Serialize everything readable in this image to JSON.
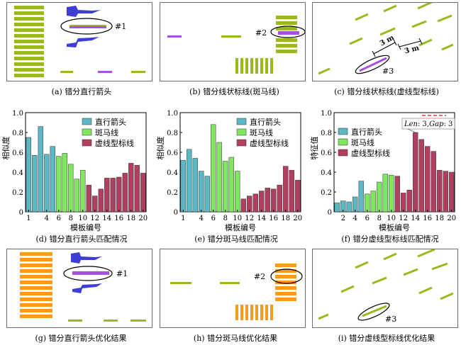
{
  "colors": {
    "green": "#9ab91d",
    "purple": "#a64fe0",
    "blue_dark": "#3e3fd2",
    "orange": "#f79a22",
    "arrow_bar": "#5bb8c4",
    "zebra_bar": "#80e660",
    "dashed_bar": "#b0405e",
    "red_dash": "#e0302b"
  },
  "panels": [
    {
      "id": "a",
      "caption": "(a) 错分直行箭头",
      "marker": "#1"
    },
    {
      "id": "b",
      "caption": "(b) 错分线状标线(斑马线)",
      "marker": "#2"
    },
    {
      "id": "c",
      "caption": "(c) 错分线状标线(虚线型标线)",
      "marker": "#3",
      "dim1": "3 m",
      "dim2": "3 m"
    },
    {
      "id": "g",
      "caption": "(g) 错分直行箭头优化结果",
      "marker": "#1"
    },
    {
      "id": "h",
      "caption": "(h) 错分斑马线优化结果",
      "marker": "#2"
    },
    {
      "id": "i",
      "caption": "(i) 错分虚线型标线优化结果",
      "marker": "#3"
    }
  ],
  "chart_data": [
    {
      "id": "d",
      "type": "bar",
      "caption": "(d) 错分直行箭头匹配情况",
      "xlabel": "模板编号",
      "ylabel": "相似度",
      "ylim": [
        0,
        1.0
      ],
      "yticks": [
        "0",
        "0.2",
        "0.4",
        "0.6",
        "0.8",
        "1.0"
      ],
      "xticks": [
        "1",
        "4",
        "6",
        "8",
        "10",
        "12",
        "14",
        "16",
        "18",
        "20"
      ],
      "legend_position": "top-right",
      "series": [
        {
          "name": "直行箭头",
          "color_key": "arrow_bar",
          "x": [
            1,
            2,
            3,
            4,
            5
          ],
          "values": [
            0.75,
            0.57,
            0.86,
            0.58,
            0.66
          ]
        },
        {
          "name": "斑马线",
          "color_key": "zebra_bar",
          "x": [
            6,
            7,
            8,
            9,
            10
          ],
          "values": [
            0.56,
            0.59,
            0.48,
            0.33,
            0.42
          ]
        },
        {
          "name": "虚线型标线",
          "color_key": "dashed_bar",
          "x": [
            11,
            12,
            13,
            14,
            15,
            16,
            17,
            18,
            19,
            20
          ],
          "values": [
            0.27,
            0.16,
            0.23,
            0.34,
            0.34,
            0.35,
            0.39,
            0.49,
            0.47,
            0.39
          ]
        }
      ]
    },
    {
      "id": "e",
      "type": "bar",
      "caption": "(e) 错分斑马线匹配情况",
      "xlabel": "模板编号",
      "ylabel": "相似度",
      "ylim": [
        0,
        1.0
      ],
      "yticks": [
        "0",
        "0.2",
        "0.4",
        "0.6",
        "0.8",
        "1.0"
      ],
      "xticks": [
        "1",
        "4",
        "6",
        "8",
        "10",
        "12",
        "14",
        "16",
        "18",
        "20"
      ],
      "legend_position": "top-right",
      "series": [
        {
          "name": "直行箭头",
          "color_key": "arrow_bar",
          "x": [
            1,
            2,
            3,
            4,
            5
          ],
          "values": [
            0.52,
            0.63,
            0.54,
            0.41,
            0.36
          ]
        },
        {
          "name": "斑马线",
          "color_key": "zebra_bar",
          "x": [
            6,
            7,
            8,
            9,
            10
          ],
          "values": [
            0.88,
            0.7,
            0.51,
            0.55,
            0.41
          ]
        },
        {
          "name": "虚线型标线",
          "color_key": "dashed_bar",
          "x": [
            11,
            12,
            13,
            14,
            15,
            16,
            17,
            18,
            19,
            20
          ],
          "values": [
            0.13,
            0.16,
            0.18,
            0.21,
            0.24,
            0.23,
            0.27,
            0.46,
            0.42,
            0.32
          ]
        }
      ]
    },
    {
      "id": "f",
      "type": "bar",
      "caption": "(f) 错分虚线型标线匹配情况",
      "xlabel": "模板编号",
      "ylabel": "特征值",
      "ylim": [
        0,
        1.0
      ],
      "yticks": [
        "0",
        "0.2",
        "0.4",
        "0.6",
        "0.8",
        "1.0"
      ],
      "xticks": [
        "2",
        "4",
        "6",
        "8",
        "10",
        "12",
        "14",
        "16",
        "18",
        "20"
      ],
      "legend_position": "top-left",
      "annotation": {
        "len_label": "Len",
        "len_value": ": 3,",
        "gap_label": "Gap",
        "gap_value": ": 3"
      },
      "series": [
        {
          "name": "直行箭头",
          "color_key": "arrow_bar",
          "x": [
            1,
            2,
            3,
            4,
            5
          ],
          "values": [
            0.09,
            0.11,
            0.1,
            0.15,
            0.31
          ]
        },
        {
          "name": "斑马线",
          "color_key": "zebra_bar",
          "x": [
            6,
            7,
            8,
            9,
            10
          ],
          "values": [
            0.18,
            0.21,
            0.3,
            0.38,
            0.37
          ]
        },
        {
          "name": "虚线型标线",
          "color_key": "dashed_bar",
          "x": [
            11,
            12,
            13,
            14,
            15,
            16,
            17,
            18,
            19,
            20
          ],
          "values": [
            0.36,
            0.19,
            0.22,
            0.8,
            0.73,
            0.66,
            0.61,
            0.42,
            0.41,
            0.4
          ]
        }
      ]
    }
  ]
}
